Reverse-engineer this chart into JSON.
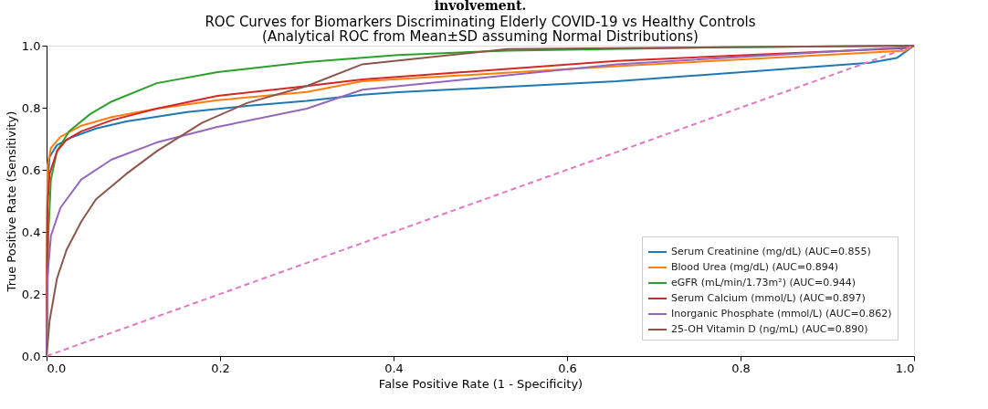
{
  "chart_data": {
    "type": "line",
    "title": "ROC Curves for Biomarkers Discriminating Elderly COVID-19 vs Healthy Controls",
    "subtitle": "(Analytical ROC from Mean±SD assuming Normal Distributions)",
    "annotations": [
      "involvement."
    ],
    "xlabel": "False Positive Rate (1 - Specificity)",
    "ylabel": "True Positive Rate (Sensitivity)",
    "xlim": [
      0,
      1
    ],
    "ylim": [
      0,
      1
    ],
    "xticks": [
      {
        "value": 0,
        "label": "0.0"
      },
      0.2,
      0.4,
      0.6,
      0.8,
      {
        "value": 1,
        "label": "1.0"
      }
    ],
    "yticks": [
      {
        "value": 0,
        "label": "0.0"
      },
      0.2,
      0.4,
      0.6,
      0.8,
      {
        "value": 1,
        "label": "1.0"
      }
    ],
    "grid": false,
    "legend": "bottom right",
    "marker": "none",
    "series": [
      {
        "name": "Serum Creatinine (mg/dL) (AUC=0.855)",
        "color": "#1f77b4",
        "x": [
          0,
          0.001,
          0.0035,
          0.012,
          0.03,
          0.057,
          0.092,
          0.162,
          0.231,
          0.3,
          0.364,
          0.405,
          0.657,
          0.949,
          0.98,
          1.0
        ],
        "values": [
          0,
          0.55,
          0.642,
          0.68,
          0.706,
          0.733,
          0.756,
          0.786,
          0.806,
          0.822,
          0.842,
          0.85,
          0.885,
          0.945,
          0.96,
          1.0
        ]
      },
      {
        "name": "Blood Urea (mg/dL) (AUC=0.894)",
        "color": "#ff7f0e",
        "x": [
          0,
          0.001,
          0.005,
          0.016,
          0.04,
          0.075,
          0.127,
          0.197,
          0.3,
          0.364,
          0.657,
          0.99,
          1.0
        ],
        "values": [
          0,
          0.615,
          0.67,
          0.706,
          0.742,
          0.77,
          0.797,
          0.824,
          0.851,
          0.885,
          0.934,
          0.984,
          1.0
        ]
      },
      {
        "name": "eGFR (mL/min/1.73m²) (AUC=0.944)",
        "color": "#2ca02c",
        "x": [
          0,
          0.002,
          0.005,
          0.012,
          0.026,
          0.05,
          0.075,
          0.127,
          0.197,
          0.3,
          0.405,
          0.531,
          0.78,
          1.0
        ],
        "values": [
          0,
          0.387,
          0.569,
          0.66,
          0.724,
          0.779,
          0.82,
          0.879,
          0.915,
          0.947,
          0.97,
          0.984,
          0.995,
          1.0
        ]
      },
      {
        "name": "Serum Calcium (mmol/L) (AUC=0.897)",
        "color": "#d62728",
        "x": [
          0,
          0.001,
          0.0035,
          0.012,
          0.023,
          0.04,
          0.075,
          0.127,
          0.197,
          0.3,
          0.364,
          0.657,
          0.99,
          1.0
        ],
        "values": [
          0,
          0.478,
          0.587,
          0.66,
          0.697,
          0.724,
          0.76,
          0.797,
          0.838,
          0.87,
          0.891,
          0.951,
          0.992,
          1.0
        ]
      },
      {
        "name": "Inorganic Phosphate (mmol/L) (AUC=0.862)",
        "color": "#9467bd",
        "x": [
          0,
          0.001,
          0.005,
          0.016,
          0.04,
          0.075,
          0.127,
          0.197,
          0.3,
          0.364,
          0.657,
          0.99,
          1.0
        ],
        "values": [
          0,
          0.25,
          0.387,
          0.478,
          0.569,
          0.633,
          0.688,
          0.738,
          0.797,
          0.858,
          0.94,
          0.995,
          1.0
        ]
      },
      {
        "name": "25-OH Vitamin D (ng/mL) (AUC=0.890)",
        "color": "#8c564b",
        "x": [
          0,
          0.0035,
          0.012,
          0.023,
          0.04,
          0.057,
          0.092,
          0.127,
          0.179,
          0.231,
          0.3,
          0.364,
          0.531,
          1.0
        ],
        "values": [
          0,
          0.114,
          0.25,
          0.342,
          0.433,
          0.505,
          0.587,
          0.66,
          0.751,
          0.815,
          0.87,
          0.94,
          0.989,
          1.0
        ]
      },
      {
        "color": "#e377c2",
        "line_style": "dashed",
        "x": [
          0,
          1
        ],
        "values": [
          0,
          1
        ]
      }
    ]
  }
}
